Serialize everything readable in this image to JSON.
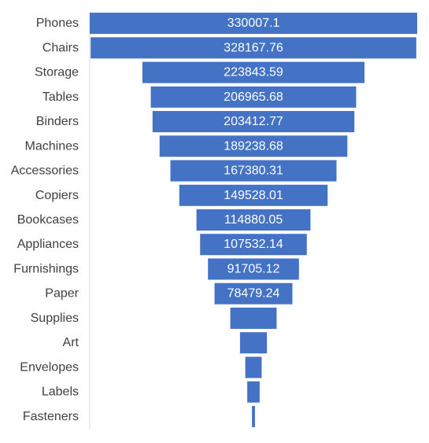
{
  "chart_data": {
    "type": "bar",
    "subtype": "funnel",
    "orientation": "horizontal",
    "categories": [
      "Phones",
      "Chairs",
      "Storage",
      "Tables",
      "Binders",
      "Machines",
      "Accessories",
      "Copiers",
      "Bookcases",
      "Appliances",
      "Furnishings",
      "Paper",
      "Supplies",
      "Art",
      "Envelopes",
      "Labels",
      "Fasteners"
    ],
    "values": [
      330007.1,
      328167.76,
      223843.59,
      206965.68,
      203412.77,
      189238.68,
      167380.31,
      149528.01,
      114880.05,
      107532.14,
      91705.12,
      78479.24,
      46673.54,
      27118.79,
      16476.4,
      12486.31,
      3024.28
    ],
    "data_labels": [
      "330007.1",
      "328167.76",
      "223843.59",
      "206965.68",
      "203412.77",
      "189238.68",
      "167380.31",
      "149528.01",
      "114880.05",
      "107532.14",
      "91705.12",
      "78479.24",
      "",
      "",
      "",
      "",
      ""
    ],
    "title": "",
    "xlabel": "",
    "ylabel": "",
    "bar_color": "#4472C4",
    "label_color": "#ffffff",
    "category_label_color": "#404040",
    "axis_color": "#d9d9d9",
    "grid": false,
    "legend": "none"
  }
}
